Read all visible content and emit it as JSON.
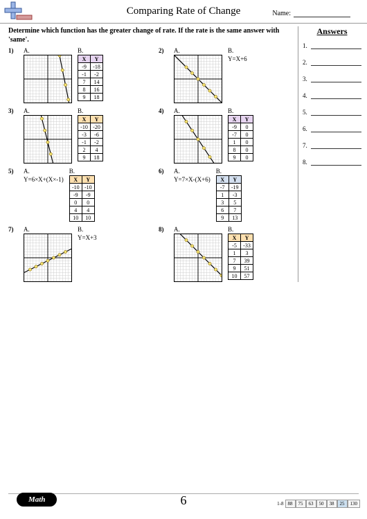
{
  "header": {
    "title": "Comparing Rate of Change",
    "name_label": "Name:"
  },
  "instructions": "Determine which function has the greater change of rate. If the rate is the same answer with 'same'.",
  "answers_title": "Answers",
  "answer_slots": [
    "1.",
    "2.",
    "3.",
    "4.",
    "5.",
    "6.",
    "7.",
    "8."
  ],
  "problems": [
    {
      "num": "1)",
      "a": {
        "type": "graph",
        "points": [
          [
            4,
            8
          ],
          [
            5,
            3
          ],
          [
            6,
            -2
          ],
          [
            7,
            -7
          ]
        ],
        "slope": -5
      },
      "b": {
        "type": "table",
        "header_bg": "#e6d4f0",
        "rows": [
          [
            "-9",
            "-18"
          ],
          [
            "-1",
            "-2"
          ],
          [
            "7",
            "14"
          ],
          [
            "8",
            "16"
          ],
          [
            "9",
            "18"
          ]
        ]
      }
    },
    {
      "num": "2)",
      "a": {
        "type": "graph",
        "points": [
          [
            -4,
            4
          ],
          [
            -2,
            2
          ],
          [
            0,
            0
          ],
          [
            2,
            -2
          ],
          [
            4,
            -4
          ],
          [
            6,
            -6
          ]
        ],
        "slope": -1
      },
      "b": {
        "type": "equation",
        "text": "Y=X+6"
      }
    },
    {
      "num": "3)",
      "a": {
        "type": "graph",
        "points": [
          [
            -2,
            7
          ],
          [
            -1,
            3
          ],
          [
            0,
            -1
          ],
          [
            1,
            -5
          ]
        ],
        "slope": -4
      },
      "b": {
        "type": "table",
        "header_bg": "#fde0b0",
        "rows": [
          [
            "-10",
            "-20"
          ],
          [
            "-3",
            "-6"
          ],
          [
            "-1",
            "-2"
          ],
          [
            "2",
            "4"
          ],
          [
            "9",
            "18"
          ]
        ]
      }
    },
    {
      "num": "4)",
      "a": {
        "type": "graph",
        "points": [
          [
            -4,
            6
          ],
          [
            -2,
            3
          ],
          [
            0,
            0
          ],
          [
            2,
            -3
          ],
          [
            4,
            -6
          ]
        ],
        "slope": -1.5
      },
      "b": {
        "type": "table",
        "header_bg": "#e6d4f0",
        "rows": [
          [
            "-9",
            "0"
          ],
          [
            "-7",
            "0"
          ],
          [
            "1",
            "0"
          ],
          [
            "8",
            "0"
          ],
          [
            "9",
            "0"
          ]
        ]
      }
    },
    {
      "num": "5)",
      "a": {
        "type": "equation",
        "text": "Y=6×X+(X×-1)"
      },
      "b": {
        "type": "table",
        "header_bg": "#fde0b0",
        "rows": [
          [
            "-10",
            "-10"
          ],
          [
            "-9",
            "-9"
          ],
          [
            "0",
            "0"
          ],
          [
            "4",
            "4"
          ],
          [
            "10",
            "10"
          ]
        ]
      }
    },
    {
      "num": "6)",
      "a": {
        "type": "equation",
        "text": "Y=7×X-(X+6)"
      },
      "b": {
        "type": "table",
        "header_bg": "#d4e0f0",
        "rows": [
          [
            "-7",
            "-19"
          ],
          [
            "1",
            "-3"
          ],
          [
            "3",
            "5"
          ],
          [
            "6",
            "7"
          ],
          [
            "9",
            "13"
          ]
        ]
      }
    },
    {
      "num": "7)",
      "a": {
        "type": "graph",
        "points": [
          [
            -6,
            -4
          ],
          [
            -4,
            -3
          ],
          [
            -2,
            -2
          ],
          [
            0,
            -1
          ],
          [
            2,
            0
          ],
          [
            4,
            1
          ],
          [
            6,
            2
          ]
        ],
        "slope": 0.5
      },
      "b": {
        "type": "equation",
        "text": "Y=X+3"
      }
    },
    {
      "num": "8)",
      "a": {
        "type": "graph",
        "points": [
          [
            -4,
            6
          ],
          [
            -2,
            4
          ],
          [
            0,
            2
          ],
          [
            2,
            0
          ],
          [
            4,
            -2
          ],
          [
            6,
            -4
          ],
          [
            8,
            -6
          ]
        ],
        "slope": -1
      },
      "b": {
        "type": "table",
        "header_bg": "#fde0b0",
        "rows": [
          [
            "-5",
            "-33"
          ],
          [
            "1",
            "3"
          ],
          [
            "7",
            "39"
          ],
          [
            "9",
            "51"
          ],
          [
            "10",
            "57"
          ]
        ]
      }
    }
  ],
  "footer": {
    "math_label": "Math",
    "page_num": "6",
    "range": "1-8",
    "boxes": [
      "88",
      "75",
      "63",
      "50",
      "38",
      "25",
      "130"
    ],
    "active_index": 5
  }
}
